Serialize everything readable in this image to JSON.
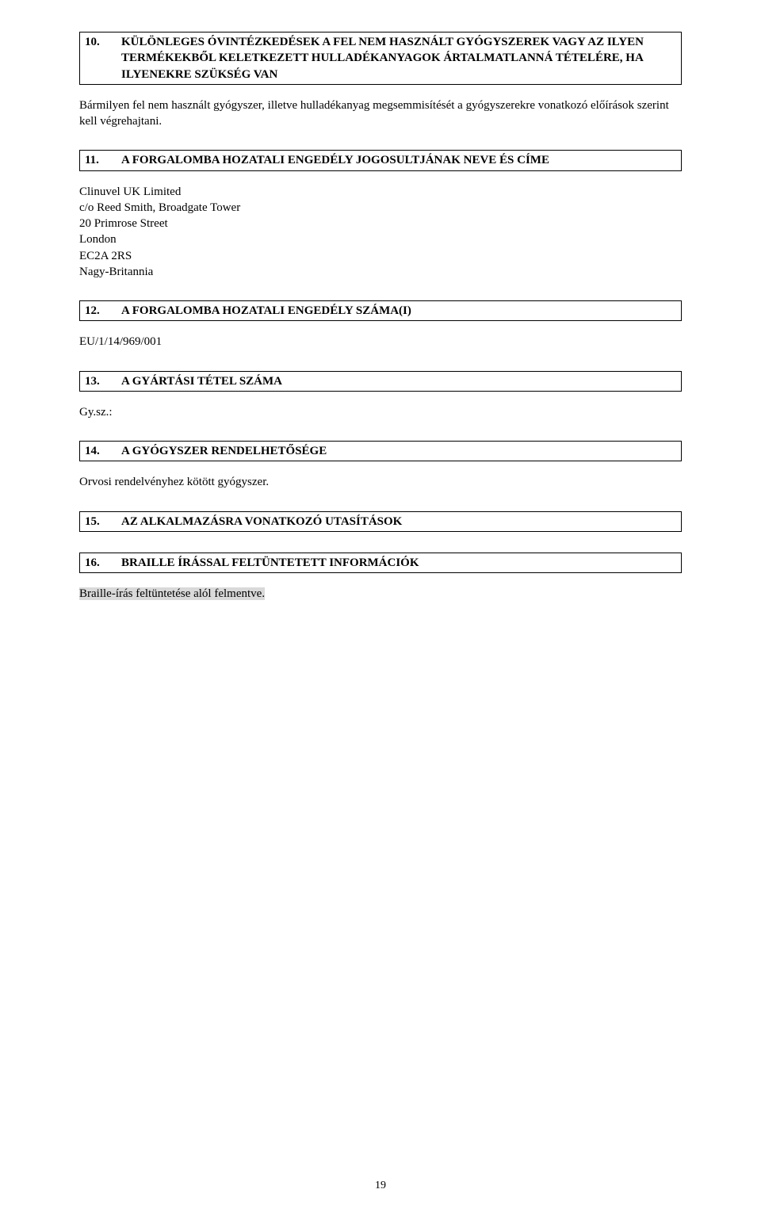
{
  "sections": {
    "s10": {
      "num": "10.",
      "title": "KÜLÖNLEGES ÓVINTÉZKEDÉSEK A FEL NEM HASZNÁLT GYÓGYSZEREK VAGY AZ ILYEN TERMÉKEKBŐL KELETKEZETT HULLADÉKANYAGOK ÁRTALMATLANNÁ TÉTELÉRE, HA ILYENEKRE SZÜKSÉG VAN",
      "body": "Bármilyen fel nem használt gyógyszer, illetve hulladékanyag megsemmisítését a gyógyszerekre vonatkozó előírások szerint kell végrehajtani."
    },
    "s11": {
      "num": "11.",
      "title": "A FORGALOMBA HOZATALI ENGEDÉLY JOGOSULTJÁNAK NEVE ÉS CÍME",
      "addr": [
        "Clinuvel UK Limited",
        "c/o Reed Smith, Broadgate Tower",
        "20 Primrose Street",
        "London",
        "EC2A 2RS",
        "Nagy-Britannia"
      ]
    },
    "s12": {
      "num": "12.",
      "title": "A FORGALOMBA HOZATALI ENGEDÉLY SZÁMA(I)",
      "body": "EU/1/14/969/001"
    },
    "s13": {
      "num": "13.",
      "title": "A GYÁRTÁSI TÉTEL SZÁMA",
      "body": "Gy.sz.:"
    },
    "s14": {
      "num": "14.",
      "title": "A GYÓGYSZER RENDELHETŐSÉGE",
      "body": "Orvosi rendelvényhez kötött gyógyszer."
    },
    "s15": {
      "num": "15.",
      "title": "AZ ALKALMAZÁSRA VONATKOZÓ UTASÍTÁSOK"
    },
    "s16": {
      "num": "16.",
      "title": "BRAILLE ÍRÁSSAL FELTÜNTETETT INFORMÁCIÓK",
      "body": "Braille-írás feltüntetése alól felmentve."
    }
  },
  "pageNumber": "19"
}
